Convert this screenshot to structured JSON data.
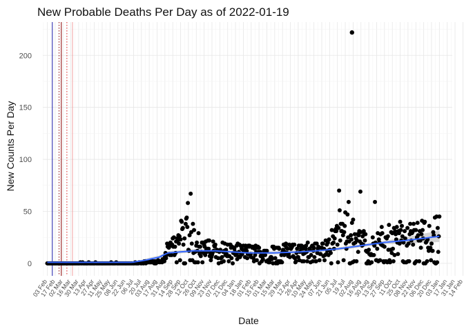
{
  "chart_data": {
    "type": "scatter",
    "title": "New Probable Deaths Per Day as of 2022-01-19",
    "xlabel": "Date",
    "ylabel": "New Counts Per Day",
    "ylim": [
      -12,
      232
    ],
    "y_ticks": [
      0,
      50,
      100,
      150,
      200
    ],
    "x_range_days": [
      -8,
      723
    ],
    "x_tick_labels": [
      "03 Feb",
      "17 Feb",
      "02 Mar",
      "16 Mar",
      "30 Mar",
      "13 Apr",
      "27 Apr",
      "11 May",
      "25 May",
      "08 Jun",
      "22 Jun",
      "06 Jul",
      "20 Jul",
      "03 Aug",
      "17 Aug",
      "31 Aug",
      "14 Sep",
      "28 Sep",
      "12 Oct",
      "26 Oct",
      "09 Nov",
      "23 Nov",
      "07 Dec",
      "21 Dec",
      "04 Jan",
      "18 Jan",
      "01 Feb",
      "15 Feb",
      "01 Mar",
      "15 Mar",
      "29 Mar",
      "12 Apr",
      "26 Apr",
      "10 May",
      "24 May",
      "07 Jun",
      "21 Jun",
      "05 Jul",
      "19 Jul",
      "02 Aug",
      "16 Aug",
      "30 Aug",
      "13 Sep",
      "27 Sep",
      "11 Oct",
      "25 Oct",
      "08 Nov",
      "22 Nov",
      "06 Dec",
      "20 Dec",
      "03 Jan",
      "17 Jan",
      "31 Jan",
      "14 Feb"
    ],
    "reference_lines": [
      {
        "day": 9,
        "color": "#1a1aaa",
        "style": "solid"
      },
      {
        "day": 21,
        "color": "#8b0000",
        "style": "dotted"
      },
      {
        "day": 25,
        "color": "#8b0000",
        "style": "solid"
      },
      {
        "day": 35,
        "color": "#dd2222",
        "style": "dotted"
      },
      {
        "day": 45,
        "color": "#f0a0a0",
        "style": "solid"
      }
    ],
    "smooth_series": {
      "name": "loess",
      "color": "#3366ff",
      "x": [
        0,
        60,
        150,
        175,
        200,
        215,
        260,
        300,
        330,
        360,
        400,
        450,
        480,
        520,
        560,
        600,
        640,
        700
      ],
      "y": [
        1,
        1,
        1,
        3,
        6,
        10,
        12,
        12,
        11,
        10,
        10,
        11,
        12,
        14,
        17,
        20,
        22,
        26
      ]
    },
    "peak_point": {
      "x": 544,
      "y": 222
    },
    "points_generated": "approx. one point per day from day 0 to day 700; pseudo-random counts following the smooth curve with waves near day 250 (up to 67) and day 525 (up to 70)"
  }
}
